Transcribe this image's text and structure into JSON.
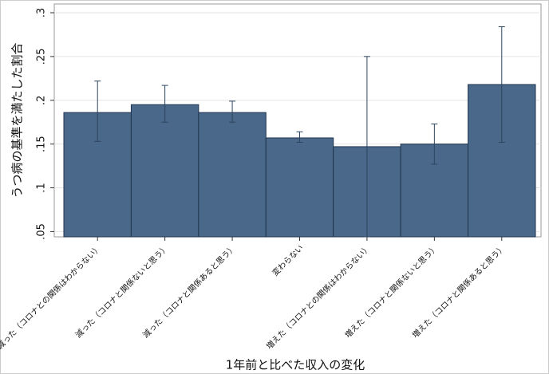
{
  "chart_data": {
    "type": "bar",
    "y_label": "うつ病の基準を満たした割合",
    "x_label": "1年前と比べた収入の変化",
    "categories": [
      "減った（コロナとの関係はわからない）",
      "減った（コロナと関係ないと思う）",
      "減った（コロナと関係あると思う）",
      "変わらない",
      "増えた（コロナとの関係はわからない）",
      "増えた（コロナと関係ないと思う）",
      "増えた（コロナと関係あると思う）"
    ],
    "values": [
      0.186,
      0.195,
      0.186,
      0.157,
      0.147,
      0.15,
      0.218
    ],
    "ci_low": [
      0.153,
      0.175,
      0.175,
      0.152,
      0.044,
      0.127,
      0.152
    ],
    "ci_high": [
      0.222,
      0.217,
      0.199,
      0.164,
      0.25,
      0.173,
      0.284
    ],
    "color": "#4a6889",
    "ylim": [
      0.044,
      0.31
    ],
    "yticks": [
      {
        "value": 0.05,
        "label": ".05"
      },
      {
        "value": 0.1,
        "label": ".1"
      },
      {
        "value": 0.15,
        "label": ".15"
      },
      {
        "value": 0.2,
        "label": ".2"
      },
      {
        "value": 0.25,
        "label": ".25"
      },
      {
        "value": 0.3,
        "label": ".3"
      }
    ],
    "grid": true
  }
}
